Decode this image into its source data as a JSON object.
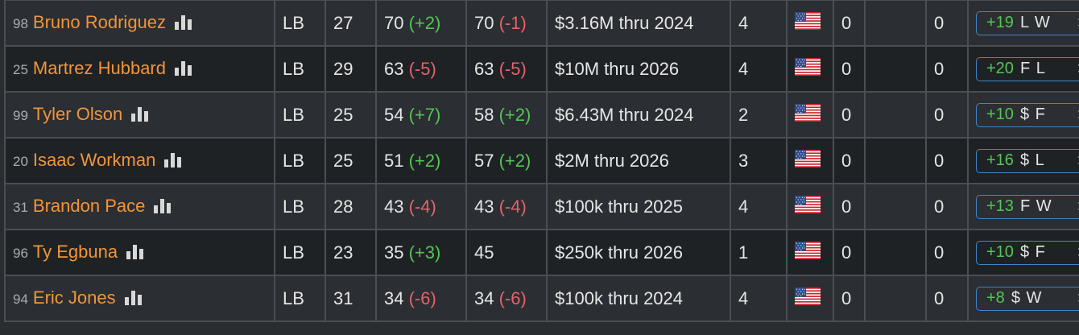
{
  "players": [
    {
      "number": "98",
      "name": "Bruno Rodriguez",
      "pos": "LB",
      "age": "27",
      "ovr": "70",
      "ovr_delta": "(+2)",
      "ovr_delta_type": "pos",
      "pot": "70",
      "pot_delta": "(-1)",
      "pot_delta_type": "neg",
      "contract": "$3.16M thru 2024",
      "exp": "4",
      "col_a": "0",
      "col_b": "",
      "col_c": "0",
      "pill_value": "+19",
      "pill_tags": "L W",
      "pill_arrow": ">"
    },
    {
      "number": "25",
      "name": "Martrez Hubbard",
      "pos": "LB",
      "age": "29",
      "ovr": "63",
      "ovr_delta": "(-5)",
      "ovr_delta_type": "neg",
      "pot": "63",
      "pot_delta": "(-5)",
      "pot_delta_type": "neg",
      "contract": "$10M thru 2026",
      "exp": "4",
      "col_a": "0",
      "col_b": "",
      "col_c": "0",
      "pill_value": "+20",
      "pill_tags": "F L",
      "pill_arrow": ">"
    },
    {
      "number": "99",
      "name": "Tyler Olson",
      "pos": "LB",
      "age": "25",
      "ovr": "54",
      "ovr_delta": "(+7)",
      "ovr_delta_type": "pos",
      "pot": "58",
      "pot_delta": "(+2)",
      "pot_delta_type": "pos",
      "contract": "$6.43M thru 2024",
      "exp": "2",
      "col_a": "0",
      "col_b": "",
      "col_c": "0",
      "pill_value": "+10",
      "pill_tags": "$ F",
      "pill_arrow": ">"
    },
    {
      "number": "20",
      "name": "Isaac Workman",
      "pos": "LB",
      "age": "25",
      "ovr": "51",
      "ovr_delta": "(+2)",
      "ovr_delta_type": "pos",
      "pot": "57",
      "pot_delta": "(+2)",
      "pot_delta_type": "pos",
      "contract": "$2M thru 2026",
      "exp": "3",
      "col_a": "0",
      "col_b": "",
      "col_c": "0",
      "pill_value": "+16",
      "pill_tags": "$ L",
      "pill_arrow": ">"
    },
    {
      "number": "31",
      "name": "Brandon Pace",
      "pos": "LB",
      "age": "28",
      "ovr": "43",
      "ovr_delta": "(-4)",
      "ovr_delta_type": "neg",
      "pot": "43",
      "pot_delta": "(-4)",
      "pot_delta_type": "neg",
      "contract": "$100k thru 2025",
      "exp": "4",
      "col_a": "0",
      "col_b": "",
      "col_c": "0",
      "pill_value": "+13",
      "pill_tags": "F W",
      "pill_arrow": ">"
    },
    {
      "number": "96",
      "name": "Ty Egbuna",
      "pos": "LB",
      "age": "23",
      "ovr": "35",
      "ovr_delta": "(+3)",
      "ovr_delta_type": "pos",
      "pot": "45",
      "pot_delta": "",
      "pot_delta_type": "none",
      "contract": "$250k thru 2026",
      "exp": "1",
      "col_a": "0",
      "col_b": "",
      "col_c": "0",
      "pill_value": "+10",
      "pill_tags": "$ F",
      "pill_arrow": ">"
    },
    {
      "number": "94",
      "name": "Eric Jones",
      "pos": "LB",
      "age": "31",
      "ovr": "34",
      "ovr_delta": "(-6)",
      "ovr_delta_type": "neg",
      "pot": "34",
      "pot_delta": "(-6)",
      "pot_delta_type": "neg",
      "contract": "$100k thru 2024",
      "exp": "4",
      "col_a": "0",
      "col_b": "",
      "col_c": "0",
      "pill_value": "+8",
      "pill_tags": "$ W",
      "pill_arrow": ">"
    }
  ],
  "icons": {
    "stats": "bar-chart-icon",
    "flag": "us-flag-icon"
  },
  "colors": {
    "name": "#f0953a",
    "positive": "#53c653",
    "negative": "#e2646a",
    "pill_border": "#3f86c9"
  }
}
